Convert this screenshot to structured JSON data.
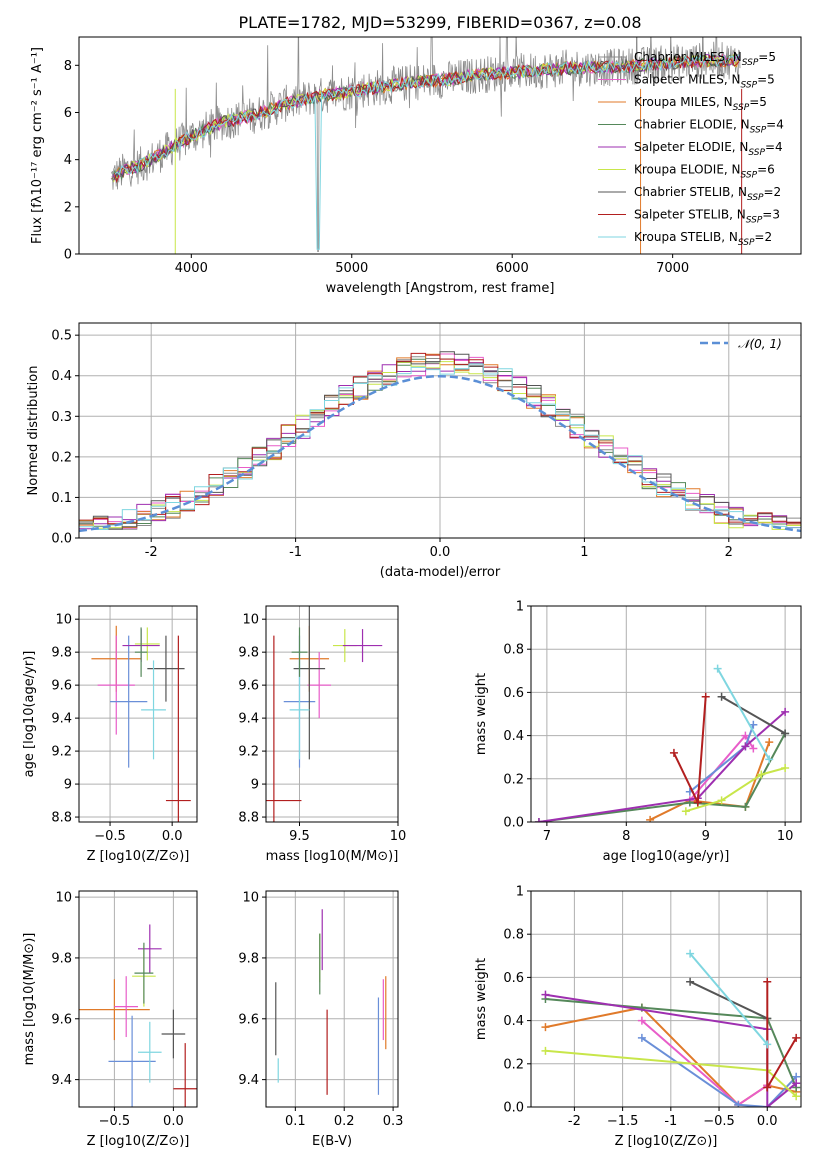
{
  "title": "PLATE=1782, MJD=53299, FIBERID=0367, z=0.08",
  "colors": [
    "#ff7f0e",
    "#8c8c8c",
    "#e85dc9",
    "#e07a2a",
    "#55885a",
    "#9e2fb0",
    "#c8e64a",
    "#555555",
    "#b21f1f",
    "#7fd6e0",
    "#6a8fd8",
    "#2e7d32"
  ],
  "models": [
    {
      "name": "Chabrier MILES",
      "nssp": "5",
      "color": "#8c8c8c"
    },
    {
      "name": "Salpeter MILES",
      "nssp": "5",
      "color": "#e85dc9"
    },
    {
      "name": "Kroupa MILES",
      "nssp": "5",
      "color": "#e07a2a"
    },
    {
      "name": "Chabrier ELODIE",
      "nssp": "4",
      "color": "#55885a"
    },
    {
      "name": "Salpeter ELODIE",
      "nssp": "4",
      "color": "#9e2fb0"
    },
    {
      "name": "Kroupa ELODIE",
      "nssp": "6",
      "color": "#c8e64a"
    },
    {
      "name": "Chabrier STELIB",
      "nssp": "2",
      "color": "#555555"
    },
    {
      "name": "Salpeter STELIB",
      "nssp": "3",
      "color": "#b21f1f"
    },
    {
      "name": "Kroupa STELIB",
      "nssp": "2",
      "color": "#7fd6e0"
    }
  ],
  "chart_data": [
    {
      "type": "line",
      "id": "spectrum",
      "xlabel": "wavelength [Angstrom, rest frame]",
      "ylabel": "Flux [fλ10⁻¹⁷ erg cm⁻² s⁻¹ A⁻¹]",
      "xlim": [
        3300,
        7800
      ],
      "ylim": [
        0,
        9.2
      ],
      "xticks": [
        4000,
        5000,
        6000,
        7000
      ],
      "yticks": [
        0,
        2,
        4,
        6,
        8
      ],
      "continuum": {
        "x": [
          3500,
          3600,
          3700,
          3800,
          3900,
          4000,
          4200,
          4400,
          4600,
          4800,
          5000,
          5200,
          5400,
          5600,
          5800,
          6000,
          6200,
          6400,
          6600,
          6800,
          7000,
          7200,
          7400
        ],
        "y": [
          3.2,
          3.6,
          3.8,
          4.2,
          4.6,
          5.0,
          5.6,
          5.9,
          6.4,
          6.7,
          6.9,
          7.1,
          7.3,
          7.4,
          7.6,
          7.7,
          7.8,
          7.9,
          7.9,
          8.0,
          8.1,
          8.2,
          8.2
        ]
      }
    },
    {
      "type": "step",
      "id": "residuals",
      "xlabel": "(data-model)/error",
      "ylabel": "Normed distribution",
      "xlim": [
        -2.5,
        2.5
      ],
      "ylim": [
        0,
        0.53
      ],
      "xticks": [
        -2,
        -1,
        0,
        1,
        2
      ],
      "yticks": [
        0,
        0.1,
        0.2,
        0.3,
        0.4,
        0.5
      ],
      "normal_label": "𝒩(0, 1)",
      "normal_color": "#5b8fd6"
    },
    {
      "type": "errorbar",
      "id": "age_vs_Z",
      "xlabel": "Z [log10(Z/Z⊙)]",
      "ylabel": "age  [log10(age/yr)]",
      "xlim": [
        -0.75,
        0.2
      ],
      "ylim": [
        8.77,
        10.08
      ],
      "xticks": [
        -0.5,
        0.0
      ],
      "yticks": [
        8.8,
        9.0,
        9.2,
        9.4,
        9.6,
        9.8,
        10.0
      ],
      "points": [
        {
          "x": -0.45,
          "xe": 0.2,
          "y": 9.76,
          "ye": 0.2,
          "c": "#e07a2a"
        },
        {
          "x": -0.45,
          "xe": 0.15,
          "y": 9.6,
          "ye": 0.3,
          "c": "#e85dc9"
        },
        {
          "x": -0.35,
          "xe": 0.15,
          "y": 9.5,
          "ye": 0.4,
          "c": "#6a8fd8"
        },
        {
          "x": -0.2,
          "xe": 0.1,
          "y": 9.85,
          "ye": 0.1,
          "c": "#c8e64a"
        },
        {
          "x": -0.25,
          "xe": 0.15,
          "y": 9.84,
          "ye": 0.1,
          "c": "#9e2fb0"
        },
        {
          "x": -0.05,
          "xe": 0.15,
          "y": 9.7,
          "ye": 0.2,
          "c": "#555555"
        },
        {
          "x": -0.15,
          "xe": 0.1,
          "y": 9.45,
          "ye": 0.3,
          "c": "#7fd6e0"
        },
        {
          "x": -0.25,
          "xe": 0.05,
          "y": 9.8,
          "ye": 0.15,
          "c": "#55885a"
        },
        {
          "x": 0.05,
          "xe": 0.1,
          "y": 8.9,
          "ye": 1.0,
          "c": "#b21f1f"
        }
      ]
    },
    {
      "type": "errorbar",
      "id": "age_vs_mass",
      "xlabel": "mass [log10(M/M⊙)]",
      "ylabel": "",
      "xlim": [
        9.33,
        10.0
      ],
      "ylim": [
        8.77,
        10.08
      ],
      "xticks": [
        9.5,
        10.0
      ],
      "yticks": [
        8.8,
        9.0,
        9.2,
        9.4,
        9.6,
        9.8,
        10.0
      ],
      "points": [
        {
          "x": 9.55,
          "xe": 0.1,
          "y": 9.76,
          "ye": 0.2,
          "c": "#e07a2a"
        },
        {
          "x": 9.6,
          "xe": 0.06,
          "y": 9.6,
          "ye": 0.2,
          "c": "#e85dc9"
        },
        {
          "x": 9.5,
          "xe": 0.08,
          "y": 9.5,
          "ye": 0.4,
          "c": "#6a8fd8"
        },
        {
          "x": 9.73,
          "xe": 0.06,
          "y": 9.84,
          "ye": 0.1,
          "c": "#c8e64a"
        },
        {
          "x": 9.82,
          "xe": 0.1,
          "y": 9.84,
          "ye": 0.1,
          "c": "#9e2fb0"
        },
        {
          "x": 9.55,
          "xe": 0.08,
          "y": 9.7,
          "ye": 0.55,
          "c": "#555555"
        },
        {
          "x": 9.5,
          "xe": 0.05,
          "y": 9.45,
          "ye": 0.3,
          "c": "#7fd6e0"
        },
        {
          "x": 9.5,
          "xe": 0.04,
          "y": 9.8,
          "ye": 0.15,
          "c": "#55885a"
        },
        {
          "x": 9.37,
          "xe": 0.14,
          "y": 8.9,
          "ye": 1.0,
          "c": "#b21f1f"
        }
      ]
    },
    {
      "type": "line",
      "id": "weight_vs_age",
      "xlabel": "age  [log10(age/yr)]",
      "ylabel": "mass weight",
      "xlim": [
        6.8,
        10.2
      ],
      "ylim": [
        0,
        1.0
      ],
      "xticks": [
        7,
        8,
        9,
        10
      ],
      "yticks": [
        0.0,
        0.2,
        0.4,
        0.6,
        0.8,
        1.0
      ],
      "series": [
        {
          "c": "#e07a2a",
          "x": [
            8.3,
            8.8,
            9.5,
            9.8
          ],
          "y": [
            0.01,
            0.1,
            0.07,
            0.37
          ]
        },
        {
          "c": "#e85dc9",
          "x": [
            8.8,
            9.5,
            9.6
          ],
          "y": [
            0.1,
            0.4,
            0.34
          ]
        },
        {
          "c": "#6a8fd8",
          "x": [
            8.8,
            9.5,
            9.6
          ],
          "y": [
            0.14,
            0.35,
            0.45
          ]
        },
        {
          "c": "#55885a",
          "x": [
            6.9,
            8.8,
            9.5,
            10.0
          ],
          "y": [
            0.0,
            0.09,
            0.07,
            0.41
          ]
        },
        {
          "c": "#9e2fb0",
          "x": [
            6.9,
            8.9,
            9.5,
            10.0
          ],
          "y": [
            0.0,
            0.11,
            0.35,
            0.51
          ]
        },
        {
          "c": "#c8e64a",
          "x": [
            8.75,
            9.2,
            9.7,
            10.0
          ],
          "y": [
            0.05,
            0.1,
            0.22,
            0.25
          ]
        },
        {
          "c": "#555555",
          "x": [
            9.2,
            10.0
          ],
          "y": [
            0.58,
            0.41
          ]
        },
        {
          "c": "#b21f1f",
          "x": [
            8.6,
            8.9,
            9.0
          ],
          "y": [
            0.32,
            0.09,
            0.58
          ]
        },
        {
          "c": "#7fd6e0",
          "x": [
            9.15,
            9.8
          ],
          "y": [
            0.71,
            0.29
          ]
        }
      ]
    },
    {
      "type": "errorbar",
      "id": "mass_vs_Z",
      "xlabel": "Z [log10(Z/Z⊙)]",
      "ylabel": "mass [log10(M/M⊙)]",
      "xlim": [
        -0.8,
        0.2
      ],
      "ylim": [
        9.31,
        10.02
      ],
      "xticks": [
        -0.5,
        0.0
      ],
      "yticks": [
        9.4,
        9.6,
        9.8,
        10.0
      ],
      "points": [
        {
          "x": -0.5,
          "xe": 0.3,
          "y": 9.63,
          "ye": 0.1,
          "c": "#e07a2a"
        },
        {
          "x": -0.4,
          "xe": 0.1,
          "y": 9.64,
          "ye": 0.1,
          "c": "#e85dc9"
        },
        {
          "x": -0.35,
          "xe": 0.2,
          "y": 9.46,
          "ye": 0.15,
          "c": "#6a8fd8"
        },
        {
          "x": -0.25,
          "xe": 0.1,
          "y": 9.74,
          "ye": 0.1,
          "c": "#c8e64a"
        },
        {
          "x": -0.2,
          "xe": 0.1,
          "y": 9.83,
          "ye": 0.08,
          "c": "#9e2fb0"
        },
        {
          "x": 0.0,
          "xe": 0.1,
          "y": 9.55,
          "ye": 0.08,
          "c": "#555555"
        },
        {
          "x": -0.2,
          "xe": 0.1,
          "y": 9.49,
          "ye": 0.1,
          "c": "#7fd6e0"
        },
        {
          "x": -0.25,
          "xe": 0.08,
          "y": 9.75,
          "ye": 0.1,
          "c": "#55885a"
        },
        {
          "x": 0.1,
          "xe": 0.1,
          "y": 9.37,
          "ye": 0.15,
          "c": "#b21f1f"
        }
      ]
    },
    {
      "type": "errorbar",
      "id": "mass_vs_ebv",
      "xlabel": "E(B-V)",
      "ylabel": "",
      "xlim": [
        0.04,
        0.31
      ],
      "ylim": [
        9.31,
        10.02
      ],
      "xticks": [
        0.1,
        0.2,
        0.3
      ],
      "yticks": [
        9.4,
        9.6,
        9.8,
        10.0
      ],
      "points": [
        {
          "x": 0.285,
          "y": 9.62,
          "ye": 0.12,
          "c": "#e07a2a"
        },
        {
          "x": 0.28,
          "y": 9.63,
          "ye": 0.1,
          "c": "#e85dc9"
        },
        {
          "x": 0.27,
          "y": 9.51,
          "ye": 0.16,
          "c": "#6a8fd8"
        },
        {
          "x": 0.15,
          "y": 9.8,
          "ye": 0.08,
          "c": "#c8e64a"
        },
        {
          "x": 0.155,
          "y": 9.86,
          "ye": 0.1,
          "c": "#9e2fb0"
        },
        {
          "x": 0.06,
          "y": 9.6,
          "ye": 0.12,
          "c": "#555555"
        },
        {
          "x": 0.065,
          "y": 9.43,
          "ye": 0.04,
          "c": "#7fd6e0"
        },
        {
          "x": 0.15,
          "y": 9.78,
          "ye": 0.1,
          "c": "#55885a"
        },
        {
          "x": 0.165,
          "y": 9.49,
          "ye": 0.14,
          "c": "#b21f1f"
        }
      ]
    },
    {
      "type": "line",
      "id": "weight_vs_Z",
      "xlabel": "Z [log10(Z/Z⊙)]",
      "ylabel": "mass weight",
      "xlim": [
        -2.45,
        0.35
      ],
      "ylim": [
        0,
        1.0
      ],
      "xticks": [
        -2.0,
        -1.5,
        -1.0,
        -0.5,
        0.0
      ],
      "yticks": [
        0.0,
        0.2,
        0.4,
        0.6,
        0.8,
        1.0
      ],
      "series": [
        {
          "c": "#e07a2a",
          "x": [
            -2.3,
            -1.3,
            -0.3,
            0.0,
            0.3
          ],
          "y": [
            0.37,
            0.46,
            0.01,
            0.1,
            0.07
          ]
        },
        {
          "c": "#e85dc9",
          "x": [
            -1.3,
            -0.3,
            0.0
          ],
          "y": [
            0.4,
            0.01,
            0.1
          ]
        },
        {
          "c": "#6a8fd8",
          "x": [
            -1.3,
            -0.3,
            0.0,
            0.3
          ],
          "y": [
            0.32,
            0.01,
            0.0,
            0.14
          ]
        },
        {
          "c": "#55885a",
          "x": [
            -2.3,
            -1.3,
            0.0,
            0.3
          ],
          "y": [
            0.5,
            0.46,
            0.41,
            0.09
          ]
        },
        {
          "c": "#9e2fb0",
          "x": [
            -2.3,
            0.0,
            0.0,
            0.3
          ],
          "y": [
            0.52,
            0.36,
            0.0,
            0.11
          ]
        },
        {
          "c": "#c8e64a",
          "x": [
            -2.3,
            0.0,
            0.3
          ],
          "y": [
            0.26,
            0.17,
            0.05
          ]
        },
        {
          "c": "#555555",
          "x": [
            -0.8,
            0.0
          ],
          "y": [
            0.58,
            0.41
          ]
        },
        {
          "c": "#b21f1f",
          "x": [
            0.0,
            0.0,
            0.3
          ],
          "y": [
            0.58,
            0.09,
            0.32
          ]
        },
        {
          "c": "#7fd6e0",
          "x": [
            -0.8,
            0.0
          ],
          "y": [
            0.71,
            0.29
          ]
        }
      ]
    }
  ]
}
